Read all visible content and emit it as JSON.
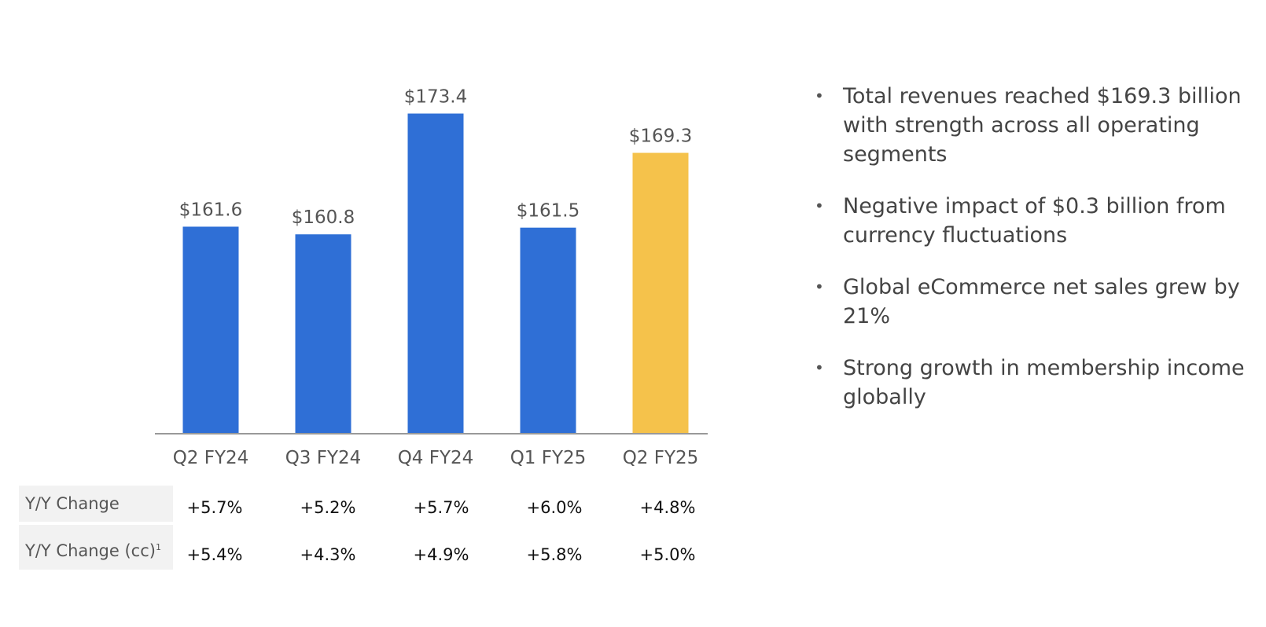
{
  "colors": {
    "bar": "#2f6fd6",
    "highlight": "#f5c24b",
    "axis": "#999999"
  },
  "chart_data": {
    "type": "bar",
    "categories": [
      "Q2 FY24",
      "Q3 FY24",
      "Q4 FY24",
      "Q1 FY25",
      "Q2 FY25"
    ],
    "values": [
      161.6,
      160.8,
      173.4,
      161.5,
      169.3
    ],
    "value_labels": [
      "$161.6",
      "$160.8",
      "$173.4",
      "$161.5",
      "$169.3"
    ],
    "highlight_index": 4,
    "ylim": [
      140,
      175
    ],
    "title": "",
    "xlabel": "",
    "ylabel": "",
    "grid": false
  },
  "table": {
    "rows": [
      {
        "label": "Y/Y Change",
        "footnote": "",
        "values": [
          "+5.7%",
          "+5.2%",
          "+5.7%",
          "+6.0%",
          "+4.8%"
        ]
      },
      {
        "label": "Y/Y Change (cc)",
        "footnote": "1",
        "values": [
          "+5.4%",
          "+4.3%",
          "+4.9%",
          "+5.8%",
          "+5.0%"
        ]
      }
    ]
  },
  "bullets": [
    "Total revenues reached $169.3 billion with strength across all operating segments",
    "Negative impact of $0.3 billion from currency fluctuations",
    "Global eCommerce net sales grew by 21%",
    "Strong growth in membership income globally"
  ]
}
